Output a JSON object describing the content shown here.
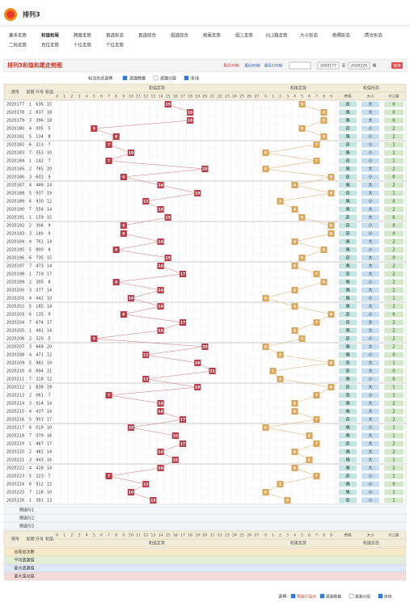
{
  "header": {
    "title": "排列3"
  },
  "nav": {
    "row1": [
      "基本走势",
      "和值和尾",
      "跨度走势",
      "直选形态",
      "直选综合",
      "组选综合",
      "和尾走势",
      "组三走势",
      "012路走势",
      "大小形态",
      "奇偶形态",
      "质合形态"
    ],
    "row2": [
      "二码走势",
      "百位走势",
      "十位走势",
      "个位走势"
    ]
  },
  "panel": {
    "title": "排列3和值和尾走势图",
    "ranges": [
      "最近50期",
      "最近80期",
      "最近100期"
    ],
    "from": "2020177",
    "to_label": "至",
    "to": "2020226",
    "period_label": "期",
    "query": "查询"
  },
  "options": {
    "label": "标注形式选择:",
    "items": [
      "遗漏数据",
      "遗漏分层",
      "折线"
    ]
  },
  "table": {
    "left_headers": [
      "期号",
      "星期",
      "开号",
      "和值"
    ],
    "sections": [
      "和值走势",
      "和尾走势",
      "和值形态"
    ],
    "sum_columns": [
      0,
      1,
      2,
      3,
      4,
      5,
      6,
      7,
      8,
      9,
      10,
      11,
      12,
      13,
      14,
      15,
      16,
      17,
      18,
      19,
      20,
      21,
      22,
      23,
      24,
      25,
      26,
      27
    ],
    "tail_columns": [
      0,
      1,
      2,
      3,
      4,
      5,
      6,
      7,
      8,
      9
    ],
    "form_columns": [
      "奇偶",
      "大小",
      "012路"
    ],
    "periods": [
      "2020177",
      "2020178",
      "2020179",
      "2020180",
      "2020181",
      "2020182",
      "2020183",
      "2020184",
      "2020185",
      "2020186",
      "2020187",
      "2020188",
      "2020189",
      "2020190",
      "2020191",
      "2020192",
      "2020193",
      "2020194",
      "2020195",
      "2020196",
      "2020197",
      "2020198",
      "2020199",
      "2020200",
      "2020201",
      "2020202",
      "2020203",
      "2020204",
      "2020205",
      "2020206",
      "2020207",
      "2020208",
      "2020209",
      "2020210",
      "2020211",
      "2020212",
      "2020213",
      "2020214",
      "2020215",
      "2020216",
      "2020217",
      "2020218",
      "2020219",
      "2020220",
      "2020221",
      "2020222",
      "2020223",
      "2020224",
      "2020225",
      "2020226"
    ],
    "weeks": [
      1,
      2,
      3,
      4,
      5,
      6,
      7,
      1,
      2,
      3,
      4,
      5,
      6,
      7,
      1,
      2,
      3,
      4,
      5,
      6,
      7,
      1,
      2,
      3,
      4,
      5,
      6,
      7,
      1,
      2,
      3,
      4,
      5,
      6,
      7,
      1,
      2,
      3,
      4,
      5,
      6,
      7,
      1,
      2,
      3,
      4,
      5,
      6,
      7,
      1
    ],
    "numbers": [
      "636",
      "837",
      "396",
      "005",
      "134",
      "313",
      "352",
      "142",
      "785",
      "603",
      "446",
      "937",
      "930",
      "554",
      "159",
      "306",
      "180",
      "761",
      "800",
      "735",
      "473",
      "719",
      "305",
      "077",
      "442",
      "185",
      "135",
      "674",
      "491",
      "320",
      "668",
      "471",
      "982",
      "894",
      "318",
      "838",
      "061",
      "914",
      "437",
      "953",
      "019",
      "079",
      "467",
      "482",
      "943",
      "428",
      "223",
      "912",
      "118",
      "391"
    ],
    "sums": [
      15,
      18,
      18,
      5,
      8,
      7,
      10,
      7,
      20,
      9,
      14,
      19,
      12,
      14,
      15,
      9,
      9,
      14,
      8,
      15,
      14,
      17,
      8,
      14,
      10,
      14,
      9,
      17,
      14,
      5,
      20,
      12,
      19,
      21,
      12,
      19,
      7,
      14,
      14,
      17,
      10,
      16,
      17,
      14,
      16,
      14,
      7,
      12,
      10,
      13
    ],
    "tails": [
      5,
      8,
      8,
      5,
      8,
      7,
      0,
      7,
      0,
      9,
      4,
      9,
      2,
      4,
      5,
      9,
      9,
      4,
      8,
      5,
      4,
      7,
      8,
      4,
      0,
      4,
      9,
      7,
      4,
      5,
      0,
      2,
      9,
      1,
      2,
      9,
      7,
      4,
      4,
      7,
      0,
      6,
      7,
      4,
      6,
      4,
      7,
      2,
      0,
      3
    ],
    "parity": [
      "奇",
      "偶",
      "偶",
      "奇",
      "偶",
      "奇",
      "偶",
      "奇",
      "偶",
      "奇",
      "偶",
      "奇",
      "偶",
      "偶",
      "奇",
      "奇",
      "奇",
      "偶",
      "偶",
      "奇",
      "偶",
      "奇",
      "偶",
      "偶",
      "偶",
      "偶",
      "奇",
      "奇",
      "偶",
      "奇",
      "偶",
      "偶",
      "奇",
      "奇",
      "偶",
      "奇",
      "奇",
      "偶",
      "偶",
      "奇",
      "偶",
      "偶",
      "奇",
      "偶",
      "偶",
      "偶",
      "奇",
      "偶",
      "偶",
      "奇"
    ],
    "size": [
      "大",
      "大",
      "大",
      "小",
      "小",
      "小",
      "小",
      "小",
      "大",
      "小",
      "大",
      "大",
      "小",
      "大",
      "大",
      "小",
      "小",
      "大",
      "小",
      "大",
      "大",
      "大",
      "小",
      "大",
      "小",
      "大",
      "小",
      "大",
      "大",
      "小",
      "大",
      "小",
      "大",
      "大",
      "小",
      "大",
      "小",
      "大",
      "大",
      "大",
      "小",
      "大",
      "大",
      "大",
      "大",
      "大",
      "小",
      "小",
      "小",
      "小"
    ],
    "route": [
      0,
      0,
      0,
      2,
      2,
      1,
      1,
      1,
      2,
      0,
      2,
      1,
      0,
      2,
      0,
      0,
      0,
      2,
      2,
      0,
      2,
      2,
      2,
      2,
      1,
      2,
      0,
      2,
      2,
      2,
      2,
      0,
      1,
      0,
      0,
      1,
      1,
      2,
      2,
      2,
      1,
      1,
      2,
      2,
      1,
      2,
      1,
      0,
      1,
      1
    ],
    "preselect": [
      "预选行1",
      "预选行2",
      "预选行3"
    ],
    "stats": [
      "出现总次数",
      "平均遗漏值",
      "最大遗漏值",
      "最大连出值"
    ]
  },
  "footer": {
    "label": "选择:",
    "items": [
      "预选行显示",
      "遗漏数据",
      "遗漏分层",
      "折线"
    ]
  }
}
